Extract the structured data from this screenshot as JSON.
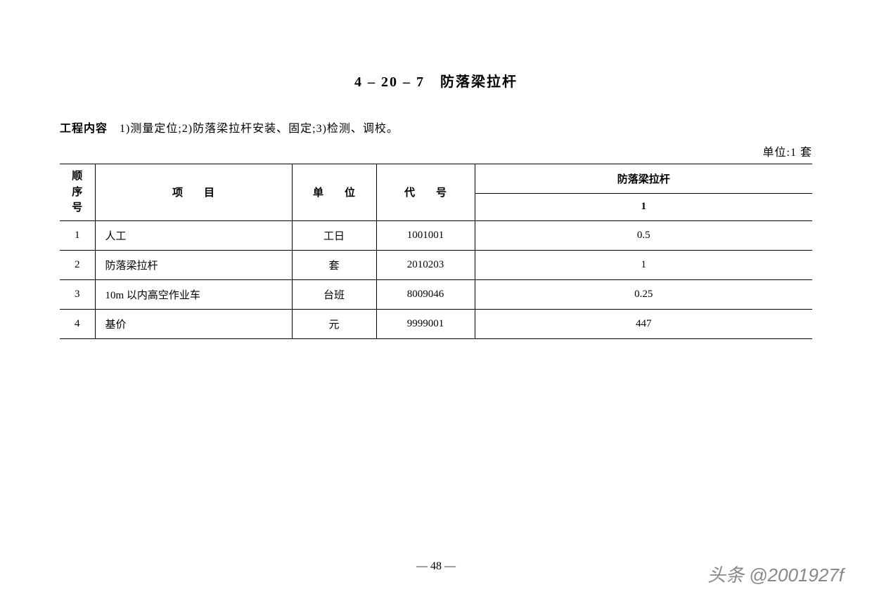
{
  "title": "4 – 20 – 7　防落梁拉杆",
  "content_label": "工程内容",
  "content_desc": "　1)测量定位;2)防落梁拉杆安装、固定;3)检测、调校。",
  "unit_text": "单位:1 套",
  "headers": {
    "seq": "顺序号",
    "item": "项　　目",
    "unit": "单　　位",
    "code": "代　　号",
    "group": "防落梁拉杆",
    "subcol": "1"
  },
  "rows": [
    {
      "seq": "1",
      "item": "人工",
      "unit": "工日",
      "code": "1001001",
      "value": "0.5"
    },
    {
      "seq": "2",
      "item": "防落梁拉杆",
      "unit": "套",
      "code": "2010203",
      "value": "1"
    },
    {
      "seq": "3",
      "item": "10m 以内高空作业车",
      "unit": "台班",
      "code": "8009046",
      "value": "0.25"
    },
    {
      "seq": "4",
      "item": "基价",
      "unit": "元",
      "code": "9999001",
      "value": "447"
    }
  ],
  "page_number": "—  48  —",
  "watermark": "头条 @2001927f"
}
